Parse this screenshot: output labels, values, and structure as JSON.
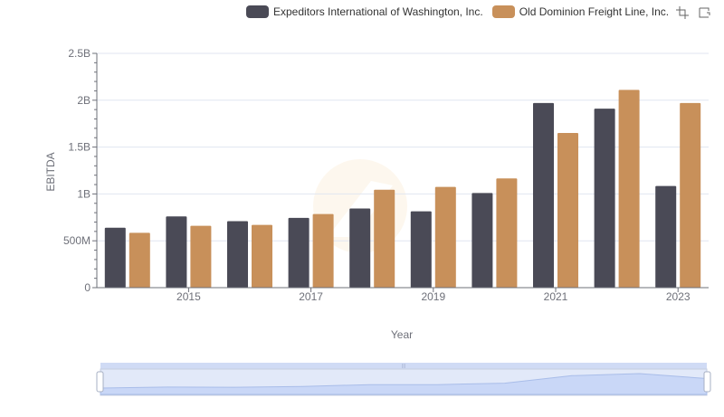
{
  "chart_data": {
    "type": "bar",
    "title": "",
    "xlabel": "Year",
    "ylabel": "EBITDA",
    "ylim": [
      0,
      2500000000
    ],
    "yticks": [
      0,
      500000000,
      1000000000,
      1500000000,
      2000000000,
      2500000000
    ],
    "ytick_labels": [
      "0",
      "500M",
      "1B",
      "1.5B",
      "2B",
      "2.5B"
    ],
    "categories": [
      "2014",
      "2015",
      "2016",
      "2017",
      "2018",
      "2019",
      "2020",
      "2021",
      "2022",
      "2023"
    ],
    "xtick_labels": [
      "2015",
      "2017",
      "2019",
      "2021",
      "2023"
    ],
    "series": [
      {
        "name": "Expeditors International of Washington, Inc.",
        "color": "#4a4a56",
        "values": [
          640000000,
          760000000,
          710000000,
          745000000,
          845000000,
          815000000,
          1010000000,
          1970000000,
          1910000000,
          1085000000
        ]
      },
      {
        "name": "Old Dominion Freight Line, Inc.",
        "color": "#c8905a",
        "values": [
          585000000,
          660000000,
          670000000,
          785000000,
          1045000000,
          1075000000,
          1165000000,
          1650000000,
          2110000000,
          1970000000
        ]
      }
    ],
    "legend_position": "top-right",
    "grid": true,
    "datazoom_slider": true
  },
  "toolbar": {
    "icons": [
      "zoom-select-icon",
      "zoom-reset-icon"
    ]
  }
}
